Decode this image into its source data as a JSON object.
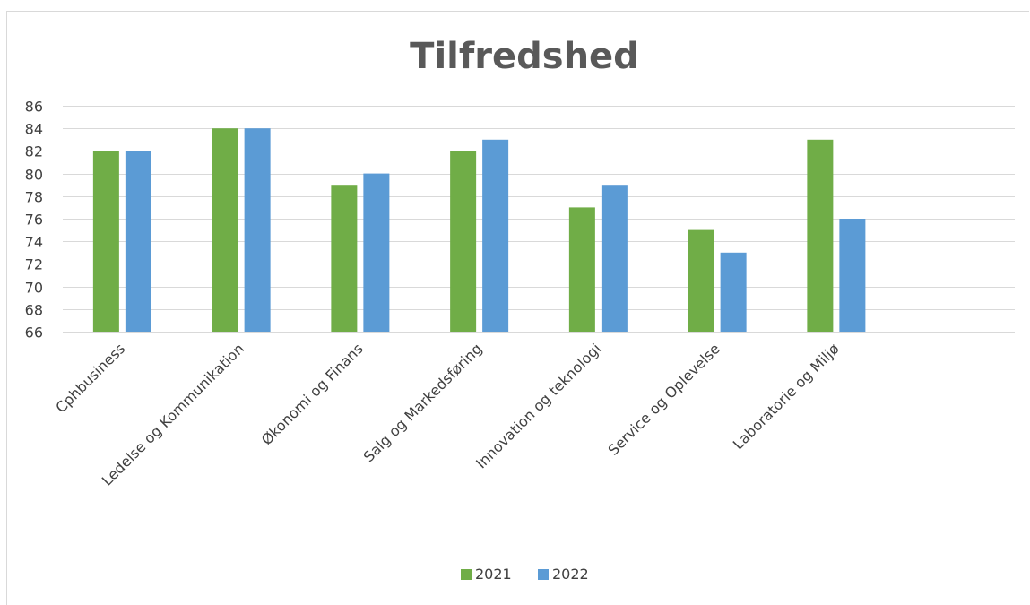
{
  "chart_data": {
    "type": "bar",
    "title": "Tilfredshed",
    "categories": [
      "Cphbusiness",
      "Ledelse og Kommunikation",
      "Økonomi og Finans",
      "Salg og Markedsføring",
      "Innovation og teknologi",
      "Service og Oplevelse",
      "Laboratorie og Miljø"
    ],
    "series": [
      {
        "name": "2021",
        "color": "#70ad47",
        "values": [
          82,
          84,
          79,
          82,
          77,
          75,
          83
        ]
      },
      {
        "name": "2022",
        "color": "#5b9bd5",
        "values": [
          82,
          84,
          80,
          83,
          79,
          73,
          76
        ]
      }
    ],
    "ylim": [
      66,
      86
    ],
    "yticks": [
      66,
      68,
      70,
      72,
      74,
      76,
      78,
      80,
      82,
      84,
      86
    ],
    "grid": true,
    "legend": "bottom",
    "slots": 8
  }
}
